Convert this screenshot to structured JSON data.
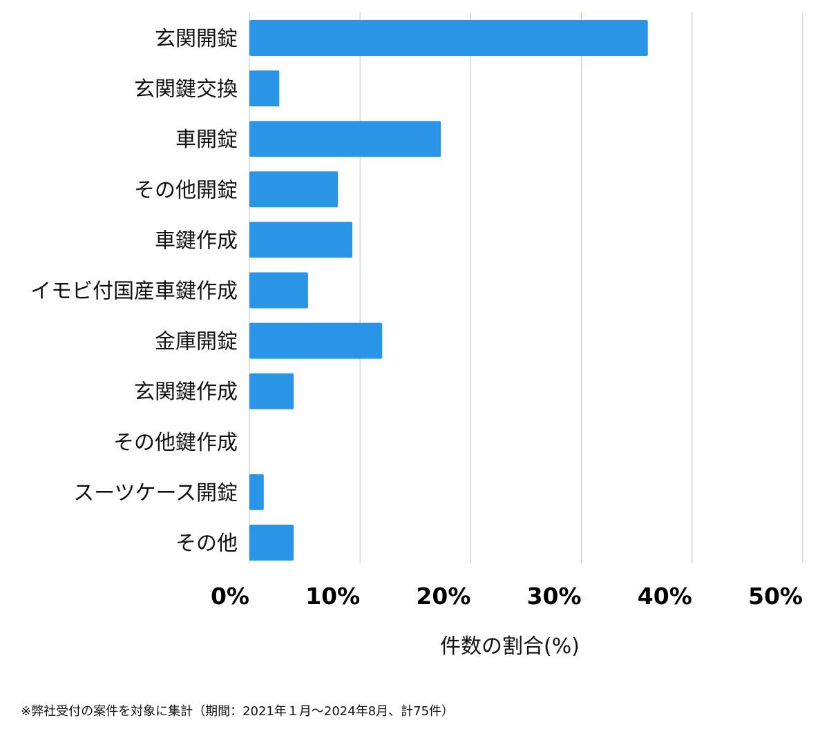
{
  "chart_data": {
    "type": "bar",
    "orientation": "horizontal",
    "categories": [
      "玄関開錠",
      "玄関鍵交換",
      "車開錠",
      "その他開錠",
      "車鍵作成",
      "イモビ付国産車鍵作成",
      "金庫開錠",
      "玄関鍵作成",
      "その他鍵作成",
      "スーツケース開錠",
      "その他"
    ],
    "values": [
      36.0,
      2.7,
      17.3,
      8.0,
      9.3,
      5.3,
      12.0,
      4.0,
      0.0,
      1.3,
      4.0
    ],
    "xlim": [
      0,
      50
    ],
    "xticks": [
      0,
      10,
      20,
      30,
      40,
      50
    ],
    "xtick_labels": [
      "0%",
      "10%",
      "20%",
      "30%",
      "40%",
      "50%"
    ],
    "xlabel": "件数の割合(%)",
    "ylabel": "",
    "title": "",
    "grid": true,
    "bar_color": "#2a95e6",
    "grid_color": "#cccccc"
  },
  "footnote": "※弊社受付の案件を対象に集計（期間：2021年１月〜2024年8月、計75件）"
}
